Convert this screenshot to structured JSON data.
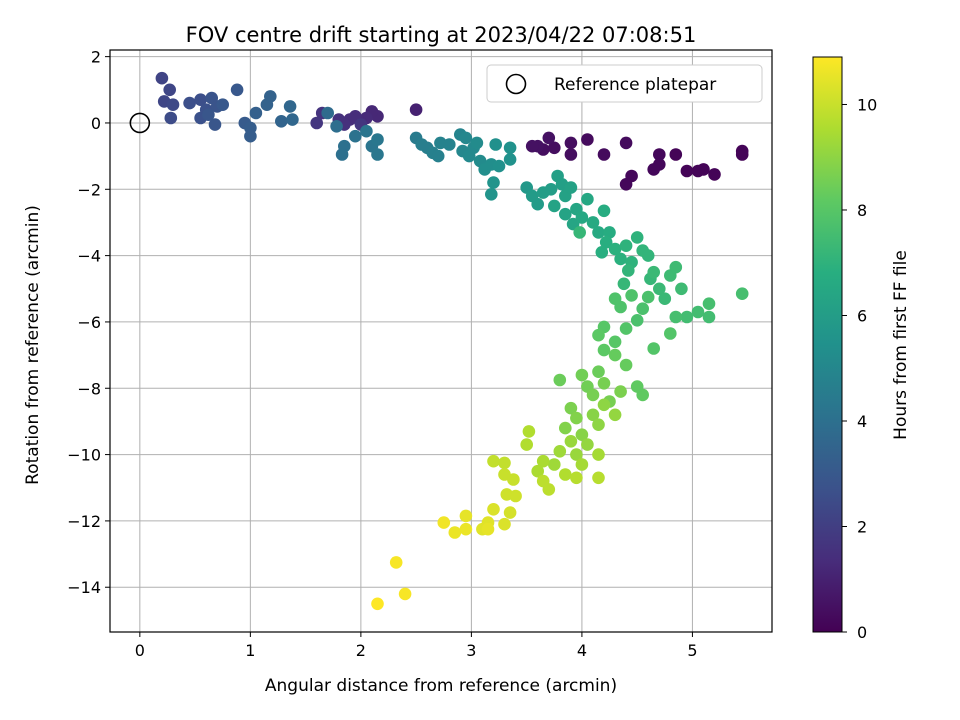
{
  "chart_data": {
    "type": "scatter",
    "title": "FOV centre drift starting at 2023/04/22 07:08:51",
    "xlabel": "Angular distance from reference (arcmin)",
    "ylabel": "Rotation from reference (arcmin)",
    "xlim": [
      -0.27,
      5.72
    ],
    "ylim": [
      -15.35,
      2.2
    ],
    "xticks": [
      0,
      1,
      2,
      3,
      4,
      5
    ],
    "yticks": [
      2,
      0,
      -2,
      -4,
      -6,
      -8,
      -10,
      -12,
      -14
    ],
    "grid": true,
    "legend": {
      "placement": "top-right",
      "entries": [
        "Reference platepar"
      ]
    },
    "reference_point": {
      "x": 0,
      "y": 0,
      "label": "Reference platepar"
    },
    "colorbar": {
      "label": "Hours from first FF file",
      "range": [
        0,
        10.9
      ],
      "ticks": [
        0,
        2,
        4,
        6,
        8,
        10
      ],
      "colormap": "viridis"
    },
    "series": [
      {
        "points": [
          {
            "x": 5.45,
            "y": -0.95,
            "c": 0.1
          },
          {
            "x": 5.45,
            "y": -0.85,
            "c": 0.1
          },
          {
            "x": 5.2,
            "y": -1.55,
            "c": 0.1
          },
          {
            "x": 5.1,
            "y": -1.4,
            "c": 0.1
          },
          {
            "x": 5.05,
            "y": -1.45,
            "c": 0.1
          },
          {
            "x": 4.95,
            "y": -1.45,
            "c": 0.1
          },
          {
            "x": 4.85,
            "y": -0.95,
            "c": 0.1
          },
          {
            "x": 4.7,
            "y": -0.95,
            "c": 0.2
          },
          {
            "x": 4.7,
            "y": -1.25,
            "c": 0.2
          },
          {
            "x": 4.65,
            "y": -1.4,
            "c": 0.2
          },
          {
            "x": 4.45,
            "y": -1.6,
            "c": 0.2
          },
          {
            "x": 4.4,
            "y": -1.85,
            "c": 0.2
          },
          {
            "x": 4.4,
            "y": -0.6,
            "c": 0.3
          },
          {
            "x": 4.2,
            "y": -0.95,
            "c": 0.3
          },
          {
            "x": 4.05,
            "y": -0.5,
            "c": 0.3
          },
          {
            "x": 3.9,
            "y": -0.95,
            "c": 0.4
          },
          {
            "x": 3.9,
            "y": -0.6,
            "c": 0.4
          },
          {
            "x": 3.75,
            "y": -0.75,
            "c": 0.4
          },
          {
            "x": 3.65,
            "y": -0.8,
            "c": 0.4
          },
          {
            "x": 3.6,
            "y": -0.7,
            "c": 0.5
          },
          {
            "x": 3.55,
            "y": -0.7,
            "c": 0.5
          },
          {
            "x": 3.7,
            "y": -0.45,
            "c": 0.5
          },
          {
            "x": 2.5,
            "y": 0.4,
            "c": 1.0
          },
          {
            "x": 2.15,
            "y": 0.2,
            "c": 1.2
          },
          {
            "x": 2.1,
            "y": 0.35,
            "c": 1.2
          },
          {
            "x": 2.05,
            "y": 0.15,
            "c": 1.3
          },
          {
            "x": 2.0,
            "y": 0.0,
            "c": 1.3
          },
          {
            "x": 1.95,
            "y": 0.2,
            "c": 1.4
          },
          {
            "x": 1.9,
            "y": 0.1,
            "c": 1.4
          },
          {
            "x": 1.85,
            "y": -0.05,
            "c": 1.5
          },
          {
            "x": 1.8,
            "y": 0.1,
            "c": 1.5
          },
          {
            "x": 1.65,
            "y": 0.3,
            "c": 1.6
          },
          {
            "x": 1.6,
            "y": 0.0,
            "c": 1.7
          },
          {
            "x": 2.0,
            "y": -0.05,
            "c": 1.7
          },
          {
            "x": 0.2,
            "y": 1.35,
            "c": 2.2
          },
          {
            "x": 0.27,
            "y": 1.0,
            "c": 2.3
          },
          {
            "x": 0.22,
            "y": 0.65,
            "c": 2.3
          },
          {
            "x": 0.3,
            "y": 0.55,
            "c": 2.4
          },
          {
            "x": 0.28,
            "y": 0.15,
            "c": 2.5
          },
          {
            "x": 0.45,
            "y": 0.6,
            "c": 2.6
          },
          {
            "x": 0.55,
            "y": 0.7,
            "c": 2.6
          },
          {
            "x": 0.6,
            "y": 0.4,
            "c": 2.7
          },
          {
            "x": 0.55,
            "y": 0.15,
            "c": 2.7
          },
          {
            "x": 0.65,
            "y": 0.75,
            "c": 2.8
          },
          {
            "x": 0.7,
            "y": 0.5,
            "c": 2.8
          },
          {
            "x": 0.68,
            "y": -0.05,
            "c": 2.9
          },
          {
            "x": 0.62,
            "y": 0.25,
            "c": 2.9
          },
          {
            "x": 0.75,
            "y": 0.55,
            "c": 3.0
          },
          {
            "x": 0.88,
            "y": 1.0,
            "c": 3.0
          },
          {
            "x": 0.95,
            "y": 0.0,
            "c": 3.1
          },
          {
            "x": 1.0,
            "y": -0.15,
            "c": 3.2
          },
          {
            "x": 1.0,
            "y": -0.4,
            "c": 3.2
          },
          {
            "x": 1.05,
            "y": 0.3,
            "c": 3.3
          },
          {
            "x": 1.15,
            "y": 0.55,
            "c": 3.4
          },
          {
            "x": 1.18,
            "y": 0.8,
            "c": 3.4
          },
          {
            "x": 1.28,
            "y": 0.05,
            "c": 3.5
          },
          {
            "x": 1.36,
            "y": 0.5,
            "c": 3.6
          },
          {
            "x": 1.38,
            "y": 0.1,
            "c": 3.6
          },
          {
            "x": 1.7,
            "y": 0.3,
            "c": 3.8
          },
          {
            "x": 1.78,
            "y": -0.1,
            "c": 3.9
          },
          {
            "x": 1.85,
            "y": -0.7,
            "c": 4.0
          },
          {
            "x": 1.83,
            "y": -0.95,
            "c": 4.0
          },
          {
            "x": 1.95,
            "y": -0.4,
            "c": 4.1
          },
          {
            "x": 2.05,
            "y": -0.25,
            "c": 4.2
          },
          {
            "x": 2.1,
            "y": -0.7,
            "c": 4.2
          },
          {
            "x": 2.15,
            "y": -0.5,
            "c": 4.3
          },
          {
            "x": 2.15,
            "y": -0.95,
            "c": 4.3
          },
          {
            "x": 2.5,
            "y": -0.45,
            "c": 4.5
          },
          {
            "x": 2.55,
            "y": -0.65,
            "c": 4.6
          },
          {
            "x": 2.6,
            "y": -0.75,
            "c": 4.6
          },
          {
            "x": 2.65,
            "y": -0.9,
            "c": 4.7
          },
          {
            "x": 2.7,
            "y": -1.0,
            "c": 4.7
          },
          {
            "x": 2.72,
            "y": -0.6,
            "c": 4.8
          },
          {
            "x": 2.8,
            "y": -0.65,
            "c": 4.8
          },
          {
            "x": 2.9,
            "y": -0.35,
            "c": 4.9
          },
          {
            "x": 2.95,
            "y": -0.45,
            "c": 5.0
          },
          {
            "x": 2.92,
            "y": -0.85,
            "c": 5.0
          },
          {
            "x": 2.98,
            "y": -1.0,
            "c": 5.1
          },
          {
            "x": 3.02,
            "y": -0.75,
            "c": 5.1
          },
          {
            "x": 3.05,
            "y": -0.6,
            "c": 5.2
          },
          {
            "x": 3.08,
            "y": -1.15,
            "c": 5.2
          },
          {
            "x": 3.12,
            "y": -1.4,
            "c": 5.3
          },
          {
            "x": 3.18,
            "y": -1.25,
            "c": 5.3
          },
          {
            "x": 3.25,
            "y": -1.3,
            "c": 5.4
          },
          {
            "x": 3.22,
            "y": -0.65,
            "c": 5.4
          },
          {
            "x": 3.35,
            "y": -0.75,
            "c": 5.5
          },
          {
            "x": 3.35,
            "y": -1.1,
            "c": 5.5
          },
          {
            "x": 3.2,
            "y": -1.8,
            "c": 5.6
          },
          {
            "x": 3.18,
            "y": -2.15,
            "c": 5.6
          },
          {
            "x": 3.5,
            "y": -1.95,
            "c": 5.8
          },
          {
            "x": 3.55,
            "y": -2.2,
            "c": 5.9
          },
          {
            "x": 3.6,
            "y": -2.45,
            "c": 5.9
          },
          {
            "x": 3.65,
            "y": -2.1,
            "c": 6.0
          },
          {
            "x": 3.72,
            "y": -2.0,
            "c": 6.0
          },
          {
            "x": 3.78,
            "y": -1.6,
            "c": 6.1
          },
          {
            "x": 3.82,
            "y": -1.85,
            "c": 6.1
          },
          {
            "x": 3.85,
            "y": -2.2,
            "c": 6.2
          },
          {
            "x": 3.9,
            "y": -1.95,
            "c": 6.2
          },
          {
            "x": 3.75,
            "y": -2.5,
            "c": 6.3
          },
          {
            "x": 3.85,
            "y": -2.75,
            "c": 6.3
          },
          {
            "x": 3.92,
            "y": -3.05,
            "c": 6.4
          },
          {
            "x": 3.95,
            "y": -2.6,
            "c": 6.4
          },
          {
            "x": 4.0,
            "y": -2.85,
            "c": 6.5
          },
          {
            "x": 4.05,
            "y": -2.3,
            "c": 6.5
          },
          {
            "x": 4.1,
            "y": -3.0,
            "c": 6.6
          },
          {
            "x": 4.15,
            "y": -3.3,
            "c": 6.6
          },
          {
            "x": 4.2,
            "y": -2.65,
            "c": 6.7
          },
          {
            "x": 4.25,
            "y": -3.3,
            "c": 6.7
          },
          {
            "x": 4.22,
            "y": -3.6,
            "c": 6.8
          },
          {
            "x": 4.18,
            "y": -3.9,
            "c": 6.8
          },
          {
            "x": 4.3,
            "y": -3.8,
            "c": 6.9
          },
          {
            "x": 4.35,
            "y": -4.1,
            "c": 6.9
          },
          {
            "x": 4.4,
            "y": -3.7,
            "c": 7.0
          },
          {
            "x": 4.45,
            "y": -4.2,
            "c": 7.0
          },
          {
            "x": 4.5,
            "y": -3.45,
            "c": 7.0
          },
          {
            "x": 4.55,
            "y": -3.85,
            "c": 7.1
          },
          {
            "x": 4.6,
            "y": -4.0,
            "c": 7.1
          },
          {
            "x": 4.42,
            "y": -4.45,
            "c": 7.1
          },
          {
            "x": 3.98,
            "y": -3.3,
            "c": 7.2
          },
          {
            "x": 4.38,
            "y": -4.85,
            "c": 7.2
          },
          {
            "x": 4.62,
            "y": -4.7,
            "c": 7.2
          },
          {
            "x": 4.65,
            "y": -4.5,
            "c": 7.3
          },
          {
            "x": 4.7,
            "y": -5.0,
            "c": 7.3
          },
          {
            "x": 4.75,
            "y": -5.3,
            "c": 7.3
          },
          {
            "x": 4.8,
            "y": -4.6,
            "c": 7.4
          },
          {
            "x": 4.85,
            "y": -4.35,
            "c": 7.4
          },
          {
            "x": 4.9,
            "y": -5.0,
            "c": 7.4
          },
          {
            "x": 4.95,
            "y": -5.85,
            "c": 7.5
          },
          {
            "x": 5.05,
            "y": -5.7,
            "c": 7.5
          },
          {
            "x": 5.15,
            "y": -5.85,
            "c": 7.5
          },
          {
            "x": 5.15,
            "y": -5.45,
            "c": 7.6
          },
          {
            "x": 5.45,
            "y": -5.15,
            "c": 7.6
          },
          {
            "x": 4.85,
            "y": -5.85,
            "c": 7.6
          },
          {
            "x": 4.6,
            "y": -5.25,
            "c": 7.7
          },
          {
            "x": 4.55,
            "y": -5.6,
            "c": 7.7
          },
          {
            "x": 4.5,
            "y": -5.95,
            "c": 7.7
          },
          {
            "x": 4.45,
            "y": -5.2,
            "c": 7.8
          },
          {
            "x": 4.35,
            "y": -5.55,
            "c": 7.8
          },
          {
            "x": 4.3,
            "y": -5.3,
            "c": 7.8
          },
          {
            "x": 4.4,
            "y": -6.2,
            "c": 7.9
          },
          {
            "x": 4.65,
            "y": -6.8,
            "c": 7.9
          },
          {
            "x": 4.8,
            "y": -6.35,
            "c": 7.9
          },
          {
            "x": 4.3,
            "y": -6.6,
            "c": 8.0
          },
          {
            "x": 4.2,
            "y": -6.15,
            "c": 8.0
          },
          {
            "x": 4.15,
            "y": -6.4,
            "c": 8.1
          },
          {
            "x": 4.2,
            "y": -6.85,
            "c": 8.1
          },
          {
            "x": 4.55,
            "y": -8.2,
            "c": 8.2
          },
          {
            "x": 4.5,
            "y": -7.95,
            "c": 8.2
          },
          {
            "x": 4.4,
            "y": -7.3,
            "c": 8.3
          },
          {
            "x": 4.3,
            "y": -7.0,
            "c": 8.3
          },
          {
            "x": 3.8,
            "y": -7.75,
            "c": 8.4
          },
          {
            "x": 4.15,
            "y": -7.5,
            "c": 8.4
          },
          {
            "x": 4.0,
            "y": -7.6,
            "c": 8.5
          },
          {
            "x": 4.05,
            "y": -7.95,
            "c": 8.5
          },
          {
            "x": 4.1,
            "y": -8.2,
            "c": 8.6
          },
          {
            "x": 4.2,
            "y": -7.85,
            "c": 8.6
          },
          {
            "x": 4.25,
            "y": -8.4,
            "c": 8.6
          },
          {
            "x": 4.35,
            "y": -8.1,
            "c": 8.7
          },
          {
            "x": 3.9,
            "y": -8.6,
            "c": 8.7
          },
          {
            "x": 3.95,
            "y": -8.9,
            "c": 8.8
          },
          {
            "x": 3.85,
            "y": -9.2,
            "c": 8.8
          },
          {
            "x": 4.0,
            "y": -9.4,
            "c": 8.9
          },
          {
            "x": 4.1,
            "y": -8.8,
            "c": 8.9
          },
          {
            "x": 4.15,
            "y": -9.1,
            "c": 9.0
          },
          {
            "x": 4.2,
            "y": -8.5,
            "c": 9.0
          },
          {
            "x": 4.3,
            "y": -8.8,
            "c": 9.1
          },
          {
            "x": 4.05,
            "y": -9.7,
            "c": 9.1
          },
          {
            "x": 3.95,
            "y": -10.0,
            "c": 9.2
          },
          {
            "x": 3.9,
            "y": -9.6,
            "c": 9.2
          },
          {
            "x": 3.8,
            "y": -9.9,
            "c": 9.3
          },
          {
            "x": 3.75,
            "y": -10.3,
            "c": 9.3
          },
          {
            "x": 4.15,
            "y": -10.0,
            "c": 9.4
          },
          {
            "x": 4.0,
            "y": -10.3,
            "c": 9.4
          },
          {
            "x": 3.65,
            "y": -10.2,
            "c": 9.5
          },
          {
            "x": 3.6,
            "y": -10.5,
            "c": 9.5
          },
          {
            "x": 3.52,
            "y": -9.3,
            "c": 9.6
          },
          {
            "x": 3.5,
            "y": -9.7,
            "c": 9.6
          },
          {
            "x": 3.85,
            "y": -10.6,
            "c": 9.6
          },
          {
            "x": 3.95,
            "y": -10.7,
            "c": 9.7
          },
          {
            "x": 4.15,
            "y": -10.7,
            "c": 9.7
          },
          {
            "x": 3.65,
            "y": -10.8,
            "c": 9.8
          },
          {
            "x": 3.7,
            "y": -11.05,
            "c": 9.8
          },
          {
            "x": 3.3,
            "y": -10.25,
            "c": 9.9
          },
          {
            "x": 3.2,
            "y": -10.2,
            "c": 9.9
          },
          {
            "x": 3.3,
            "y": -10.6,
            "c": 10.0
          },
          {
            "x": 3.38,
            "y": -10.75,
            "c": 10.0
          },
          {
            "x": 3.32,
            "y": -11.2,
            "c": 10.1
          },
          {
            "x": 3.4,
            "y": -11.25,
            "c": 10.1
          },
          {
            "x": 3.35,
            "y": -11.75,
            "c": 10.2
          },
          {
            "x": 3.2,
            "y": -11.65,
            "c": 10.3
          },
          {
            "x": 3.3,
            "y": -12.1,
            "c": 10.3
          },
          {
            "x": 3.15,
            "y": -12.05,
            "c": 10.4
          },
          {
            "x": 3.1,
            "y": -12.25,
            "c": 10.4
          },
          {
            "x": 3.15,
            "y": -12.25,
            "c": 10.5
          },
          {
            "x": 2.95,
            "y": -11.85,
            "c": 10.5
          },
          {
            "x": 2.95,
            "y": -12.25,
            "c": 10.6
          },
          {
            "x": 2.85,
            "y": -12.35,
            "c": 10.6
          },
          {
            "x": 2.75,
            "y": -12.05,
            "c": 10.7
          },
          {
            "x": 2.32,
            "y": -13.25,
            "c": 10.8
          },
          {
            "x": 2.4,
            "y": -14.2,
            "c": 10.8
          },
          {
            "x": 2.15,
            "y": -14.5,
            "c": 10.9
          }
        ]
      }
    ]
  }
}
